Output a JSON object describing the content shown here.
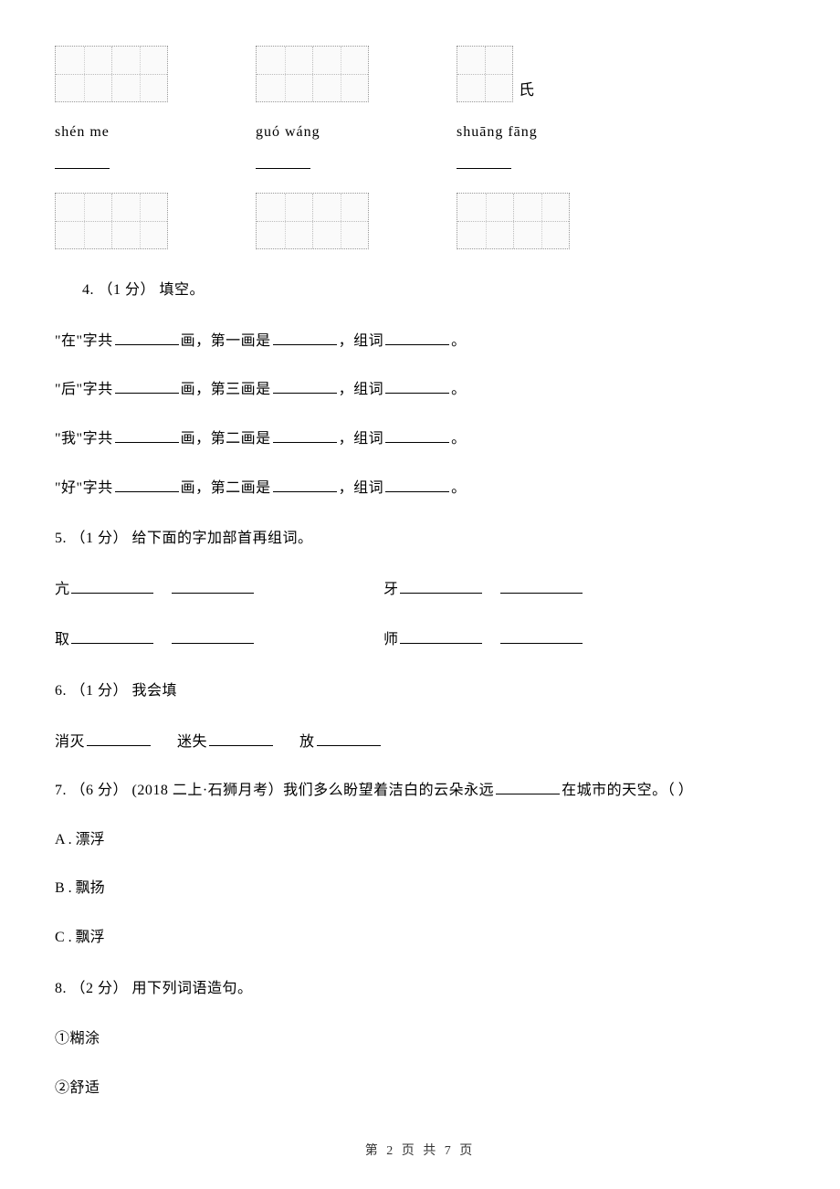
{
  "top": {
    "suffix_char": "氏",
    "pinyin1": "shén   me",
    "pinyin2": "guó   wáng",
    "pinyin3": "shuāng    fāng"
  },
  "q4": {
    "header": "4.  （1 分）  填空。",
    "line1_a": "\"在\"字共",
    "line1_b": "画，第一画是",
    "line1_c": "，组词",
    "line1_d": "。",
    "line2_a": "\"后\"字共",
    "line2_b": "画，第三画是",
    "line2_c": "，组词",
    "line2_d": "。",
    "line3_a": "\"我\"字共",
    "line3_b": "画，第二画是",
    "line3_c": "，组词",
    "line3_d": "。",
    "line4_a": "\"好\"字共",
    "line4_b": "画，第二画是",
    "line4_c": "，组词",
    "line4_d": "。"
  },
  "q5": {
    "header": "5.  （1 分）  给下面的字加部首再组词。",
    "c1": "亢",
    "c2": "牙",
    "c3": "取",
    "c4": "师"
  },
  "q6": {
    "header": "6.  （1 分）  我会填",
    "w1": "消灭",
    "w2": "迷失",
    "w3": "放"
  },
  "q7": {
    "header_a": "7.  （6 分）  (2018 二上·石狮月考）我们多么盼望着洁白的云朵永远",
    "header_b": "在城市的天空。",
    "paren": "（       ）",
    "optA": "A  .  漂浮",
    "optB": "B  .  飘扬",
    "optC": "C  .  飘浮"
  },
  "q8": {
    "header": "8.  （2 分）  用下列词语造句。",
    "item1": "①糊涂",
    "item2": "②舒适"
  },
  "footer": "第 2 页 共 7 页"
}
